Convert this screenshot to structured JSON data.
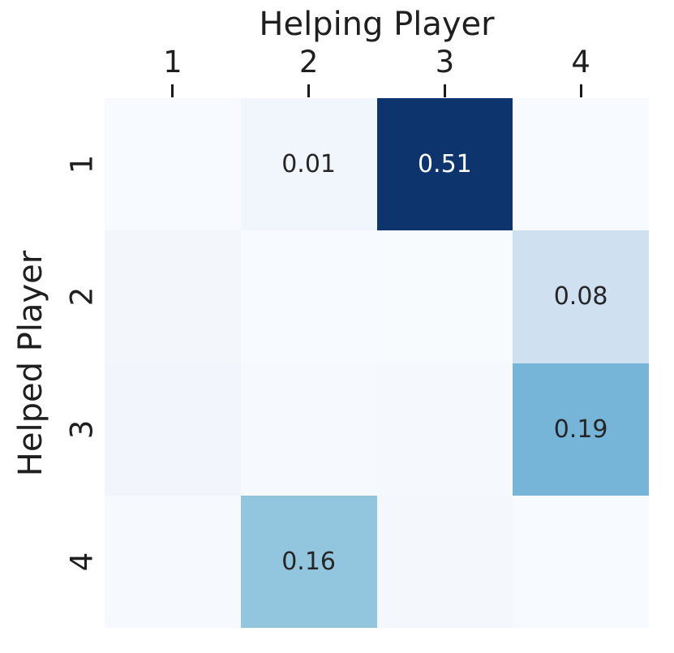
{
  "figure": {
    "background": "#ffffff",
    "text_color": "#1f1f1f",
    "tick_mark_color": "#1a1a1a"
  },
  "chart_data": {
    "type": "heatmap",
    "title": "Helping Player",
    "xlabel": "Helping Player",
    "ylabel": "Helped Player",
    "xlabel_position": "top",
    "x_axis_position": "top",
    "x_tick_labels": [
      "1",
      "2",
      "3",
      "4"
    ],
    "y_tick_labels": [
      "1",
      "2",
      "3",
      "4"
    ],
    "y_tick_rotation_deg": 90,
    "colormap": "Blues",
    "color_range": {
      "vmin": 0.0,
      "vmax": 0.51
    },
    "grid": false,
    "legend_position": "none",
    "values": [
      [
        0.0,
        0.01,
        0.51,
        0.0
      ],
      [
        0.0,
        0.0,
        0.0,
        0.08
      ],
      [
        0.0,
        0.0,
        0.0,
        0.19
      ],
      [
        0.0,
        0.16,
        0.0,
        0.0
      ]
    ],
    "annotations": [
      [
        "",
        "0.01",
        "0.51",
        ""
      ],
      [
        "",
        "",
        "",
        "0.08"
      ],
      [
        "",
        "",
        "",
        "0.19"
      ],
      [
        "",
        "0.16",
        "",
        ""
      ]
    ],
    "cell_colors": [
      [
        "#f7fafe",
        "#f0f6fc",
        "#0d346c",
        "#f7fbff"
      ],
      [
        "#f3f7fc",
        "#f7fafe",
        "#f8fbfe",
        "#cfe0f1"
      ],
      [
        "#f2f6fc",
        "#f6fafe",
        "#f5f9fd",
        "#76b4d8"
      ],
      [
        "#f6f9fd",
        "#92c5de",
        "#f4f8fd",
        "#f7fafe"
      ]
    ],
    "annotation_colors": [
      [
        "#262626",
        "#262626",
        "#ffffff",
        "#262626"
      ],
      [
        "#262626",
        "#262626",
        "#262626",
        "#262626"
      ],
      [
        "#262626",
        "#262626",
        "#262626",
        "#262626"
      ],
      [
        "#262626",
        "#262626",
        "#262626",
        "#262626"
      ]
    ]
  }
}
